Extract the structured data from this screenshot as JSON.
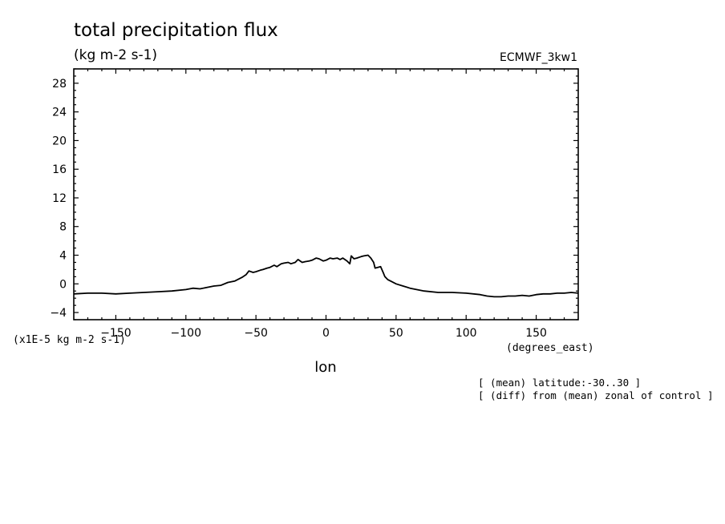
{
  "chart_data": {
    "type": "line",
    "title": "total precipitation flux",
    "subtitle": "(kg m-2 s-1)",
    "dataset_label": "ECMWF_3kw1",
    "xlabel": "lon",
    "x_units": "(degrees_east)",
    "y_scale_label": "(x1E-5 kg m-2 s-1)",
    "notes": [
      "[ (mean) latitude:-30..30 ]",
      "[ (diff) from (mean) zonal of control ]"
    ],
    "xlim": [
      -180,
      180
    ],
    "ylim": [
      -5,
      30
    ],
    "x_ticks": [
      -150,
      -100,
      -50,
      0,
      50,
      100,
      150
    ],
    "x_tick_labels": [
      "−150",
      "−100",
      "−50",
      "0",
      "50",
      "100",
      "150"
    ],
    "y_ticks": [
      -4,
      0,
      4,
      8,
      12,
      16,
      20,
      24,
      28
    ],
    "y_tick_labels": [
      "−4",
      "0",
      "4",
      "8",
      "12",
      "16",
      "20",
      "24",
      "28"
    ],
    "grid": false,
    "series": [
      {
        "color": "#000000",
        "x": [
          -180,
          -170,
          -160,
          -150,
          -140,
          -130,
          -120,
          -110,
          -100,
          -95,
          -90,
          -85,
          -80,
          -75,
          -70,
          -65,
          -60,
          -57,
          -55,
          -52,
          -50,
          -47,
          -45,
          -42,
          -40,
          -37,
          -35,
          -32,
          -30,
          -27,
          -25,
          -22,
          -20,
          -17,
          -15,
          -12,
          -10,
          -7,
          -5,
          -2,
          0,
          3,
          5,
          8,
          10,
          12,
          15,
          17,
          18,
          20,
          22,
          25,
          27,
          30,
          32,
          34,
          35,
          37,
          39,
          41,
          42,
          44,
          47,
          50,
          55,
          60,
          70,
          80,
          90,
          100,
          110,
          115,
          120,
          125,
          130,
          135,
          140,
          145,
          150,
          155,
          160,
          165,
          170,
          175,
          180
        ],
        "y": [
          -1.4,
          -1.3,
          -1.3,
          -1.4,
          -1.3,
          -1.2,
          -1.1,
          -1.0,
          -0.8,
          -0.6,
          -0.7,
          -0.5,
          -0.3,
          -0.2,
          0.2,
          0.4,
          0.9,
          1.3,
          1.8,
          1.6,
          1.7,
          1.9,
          2.0,
          2.2,
          2.3,
          2.6,
          2.4,
          2.8,
          2.9,
          3.0,
          2.8,
          3.0,
          3.4,
          3.0,
          3.1,
          3.2,
          3.3,
          3.6,
          3.5,
          3.2,
          3.3,
          3.6,
          3.5,
          3.6,
          3.4,
          3.6,
          3.2,
          2.8,
          3.9,
          3.5,
          3.6,
          3.8,
          3.9,
          4.0,
          3.6,
          3.0,
          2.2,
          2.3,
          2.4,
          1.5,
          1.0,
          0.6,
          0.3,
          0.0,
          -0.3,
          -0.6,
          -1.0,
          -1.2,
          -1.2,
          -1.3,
          -1.5,
          -1.7,
          -1.8,
          -1.8,
          -1.7,
          -1.7,
          -1.6,
          -1.7,
          -1.5,
          -1.4,
          -1.4,
          -1.3,
          -1.3,
          -1.2,
          -1.3
        ]
      }
    ]
  }
}
